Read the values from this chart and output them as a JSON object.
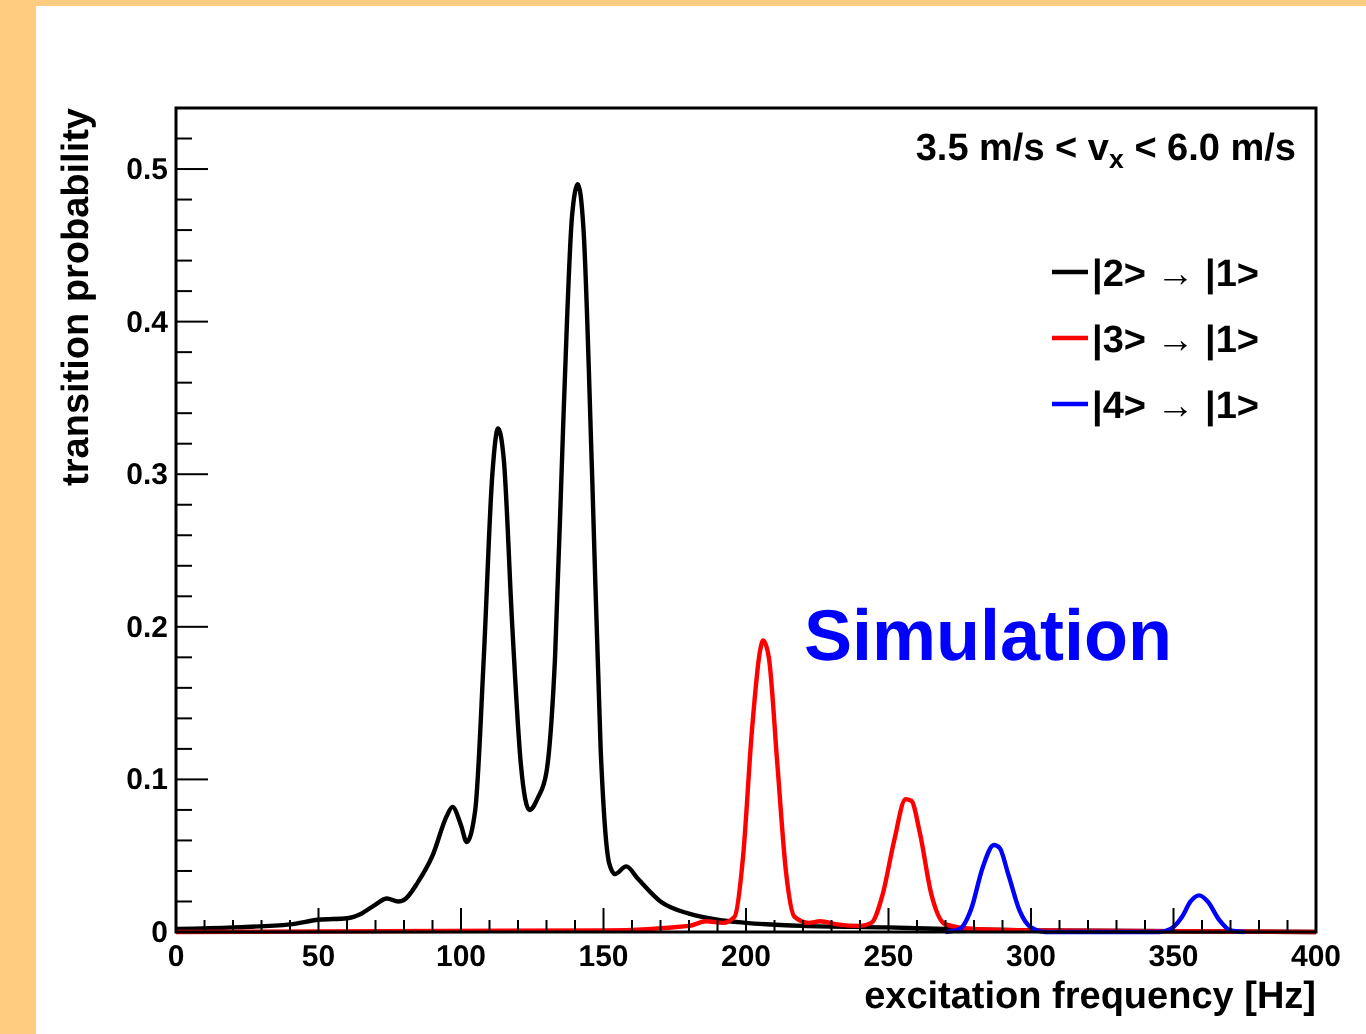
{
  "chart_data": {
    "type": "line",
    "xlabel": "excitation frequency [Hz]",
    "ylabel": "transition probability",
    "annotations": [
      "3.5 m/s < v$_{x}$ < 6.0 m/s",
      "Simulation"
    ],
    "xlim": [
      0,
      400
    ],
    "ylim": [
      0,
      0.54
    ],
    "xticks": [
      0,
      {
        "value": 10,
        "label": null
      },
      {
        "value": 20,
        "label": null
      },
      {
        "value": 30,
        "label": null
      },
      {
        "value": 40,
        "label": null
      },
      50,
      {
        "value": 60,
        "label": null
      },
      {
        "value": 70,
        "label": null
      },
      {
        "value": 80,
        "label": null
      },
      {
        "value": 90,
        "label": null
      },
      100,
      {
        "value": 110,
        "label": null
      },
      {
        "value": 120,
        "label": null
      },
      {
        "value": 130,
        "label": null
      },
      {
        "value": 140,
        "label": null
      },
      150,
      {
        "value": 160,
        "label": null
      },
      {
        "value": 170,
        "label": null
      },
      {
        "value": 180,
        "label": null
      },
      {
        "value": 190,
        "label": null
      },
      200,
      {
        "value": 210,
        "label": null
      },
      {
        "value": 220,
        "label": null
      },
      {
        "value": 230,
        "label": null
      },
      {
        "value": 240,
        "label": null
      },
      250,
      {
        "value": 260,
        "label": null
      },
      {
        "value": 270,
        "label": null
      },
      {
        "value": 280,
        "label": null
      },
      {
        "value": 290,
        "label": null
      },
      300,
      {
        "value": 310,
        "label": null
      },
      {
        "value": 320,
        "label": null
      },
      {
        "value": 330,
        "label": null
      },
      {
        "value": 340,
        "label": null
      },
      350,
      {
        "value": 360,
        "label": null
      },
      {
        "value": 370,
        "label": null
      },
      {
        "value": 380,
        "label": null
      },
      {
        "value": 390,
        "label": null
      },
      400
    ],
    "yticks": [
      0,
      {
        "value": 0.02,
        "label": null
      },
      {
        "value": 0.04,
        "label": null
      },
      {
        "value": 0.06,
        "label": null
      },
      {
        "value": 0.08,
        "label": null
      },
      0.1,
      {
        "value": 0.12,
        "label": null
      },
      {
        "value": 0.14,
        "label": null
      },
      {
        "value": 0.16,
        "label": null
      },
      {
        "value": 0.18,
        "label": null
      },
      0.2,
      {
        "value": 0.22,
        "label": null
      },
      {
        "value": 0.24,
        "label": null
      },
      {
        "value": 0.26,
        "label": null
      },
      {
        "value": 0.28,
        "label": null
      },
      0.3,
      {
        "value": 0.32,
        "label": null
      },
      {
        "value": 0.34,
        "label": null
      },
      {
        "value": 0.36,
        "label": null
      },
      {
        "value": 0.38,
        "label": null
      },
      0.4,
      {
        "value": 0.42,
        "label": null
      },
      {
        "value": 0.44,
        "label": null
      },
      {
        "value": 0.46,
        "label": null
      },
      {
        "value": 0.48,
        "label": null
      },
      0.5,
      {
        "value": 0.52,
        "label": null
      }
    ],
    "grid": false,
    "legend": "top right",
    "marker": "none",
    "line_style": "solid",
    "series": [
      {
        "name": "|2> → |1>",
        "color": "#000000",
        "x": [
          0,
          20,
          40,
          50,
          60,
          65,
          70,
          74,
          78,
          80,
          85,
          90,
          95,
          97,
          100,
          102,
          105,
          108,
          111,
          113,
          115,
          118,
          121,
          124,
          127,
          130,
          133,
          136,
          139,
          141,
          143,
          146,
          149,
          152,
          154,
          158,
          162,
          170,
          180,
          190,
          200,
          220,
          250,
          270,
          300,
          400
        ],
        "values": [
          0.002,
          0.003,
          0.005,
          0.008,
          0.009,
          0.012,
          0.018,
          0.022,
          0.02,
          0.021,
          0.033,
          0.05,
          0.076,
          0.082,
          0.07,
          0.059,
          0.08,
          0.18,
          0.3,
          0.33,
          0.31,
          0.2,
          0.11,
          0.08,
          0.088,
          0.105,
          0.18,
          0.34,
          0.47,
          0.49,
          0.46,
          0.3,
          0.12,
          0.045,
          0.038,
          0.043,
          0.035,
          0.02,
          0.012,
          0.008,
          0.006,
          0.004,
          0.003,
          0.002,
          0.001,
          0
        ]
      },
      {
        "name": "|3> → |1>",
        "color": "#ff0000",
        "x": [
          0,
          150,
          180,
          186,
          192,
          196,
          199,
          202,
          205,
          206,
          208,
          211,
          214,
          217,
          222,
          226,
          232,
          240,
          244,
          248,
          252,
          256,
          258,
          261,
          265,
          270,
          280,
          300,
          400
        ],
        "values": [
          0,
          0.001,
          0.004,
          0.007,
          0.006,
          0.01,
          0.05,
          0.13,
          0.185,
          0.191,
          0.18,
          0.11,
          0.04,
          0.01,
          0.006,
          0.007,
          0.005,
          0.004,
          0.006,
          0.025,
          0.06,
          0.087,
          0.086,
          0.065,
          0.025,
          0.005,
          0.002,
          0.001,
          0
        ]
      },
      {
        "name": "|4> → |1>",
        "color": "#0000ff",
        "x": [
          270,
          275,
          279,
          283,
          287,
          289,
          292,
          296,
          300,
          305,
          345,
          349,
          353,
          356,
          359,
          362,
          366,
          370,
          375
        ],
        "values": [
          0,
          0.002,
          0.015,
          0.042,
          0.057,
          0.055,
          0.038,
          0.014,
          0.003,
          0,
          0,
          0.002,
          0.01,
          0.02,
          0.024,
          0.02,
          0.008,
          0.001,
          0
        ]
      }
    ]
  }
}
